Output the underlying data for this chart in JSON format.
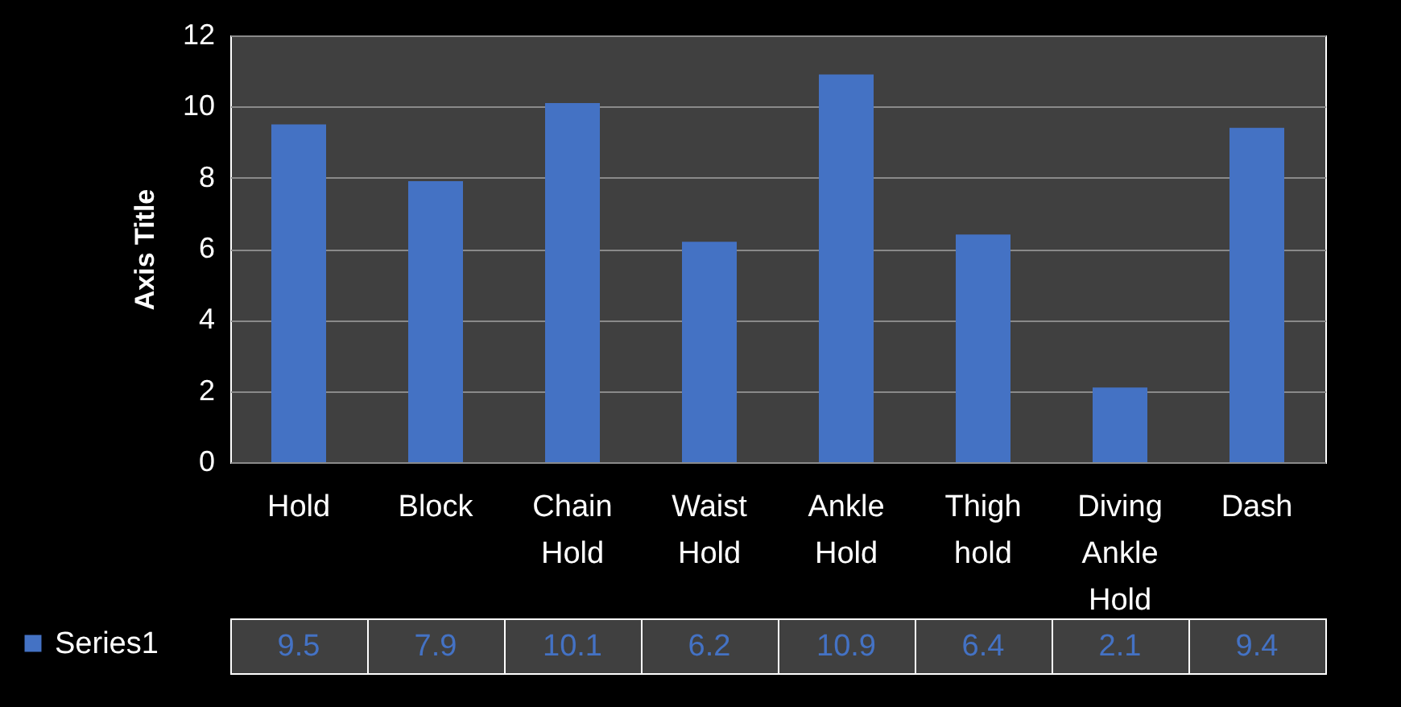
{
  "chart_data": {
    "type": "bar",
    "ylabel": "Axis Title",
    "categories": [
      "Hold",
      "Block",
      "Chain Hold",
      "Waist Hold",
      "Ankle Hold",
      "Thigh hold",
      "Diving Ankle Hold",
      "Dash"
    ],
    "series": [
      {
        "name": "Series1",
        "color": "#4472c4",
        "values": [
          9.5,
          7.9,
          10.1,
          6.2,
          10.9,
          6.4,
          2.1,
          9.4
        ]
      }
    ],
    "ylim": [
      0,
      12
    ],
    "yticks": [
      0,
      2,
      4,
      6,
      8,
      10,
      12
    ],
    "grid": "y",
    "data_labels": true,
    "legend": "bottom left"
  }
}
